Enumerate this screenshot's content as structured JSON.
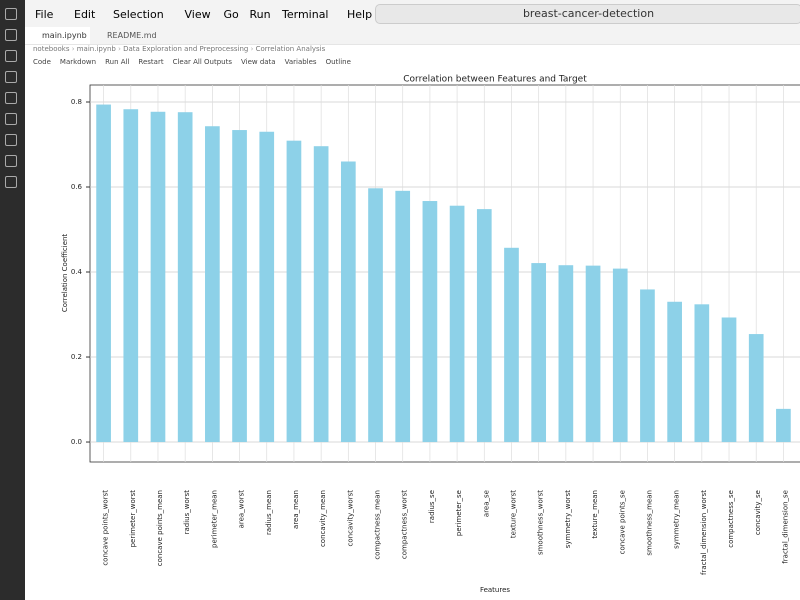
{
  "window": {
    "menu": [
      "File",
      "Edit",
      "Selection",
      "View",
      "Go",
      "Run",
      "Terminal",
      "Help"
    ],
    "search": "breast-cancer-detection",
    "tabs": [
      "main.ipynb",
      "README.md"
    ],
    "breadcrumbs": [
      "notebooks",
      "main.ipynb",
      "Data Exploration and Preprocessing",
      "Correlation Analysis"
    ],
    "toolbar": [
      "Code",
      "Markdown",
      "Run All",
      "Restart",
      "Clear All Outputs",
      "View data",
      "Variables",
      "Outline"
    ]
  },
  "chart_data": {
    "type": "bar",
    "title": "Correlation between Features and Target",
    "x_label": "Features",
    "y_label": "Correlation Coefficient",
    "categories": [
      "concave points_worst",
      "perimeter_worst",
      "concave points_mean",
      "radius_worst",
      "perimeter_mean",
      "area_worst",
      "radius_mean",
      "area_mean",
      "concavity_mean",
      "concavity_worst",
      "compactness_mean",
      "compactness_worst",
      "radius_se",
      "perimeter_se",
      "area_se",
      "texture_worst",
      "smoothness_worst",
      "symmetry_worst",
      "texture_mean",
      "concave points_se",
      "smoothness_mean",
      "symmetry_mean",
      "fractal_dimension_worst",
      "compactness_se",
      "concavity_se",
      "fractal_dimension_se"
    ],
    "values": [
      0.794,
      0.783,
      0.777,
      0.776,
      0.743,
      0.734,
      0.73,
      0.709,
      0.696,
      0.66,
      0.597,
      0.591,
      0.567,
      0.556,
      0.548,
      0.457,
      0.421,
      0.416,
      0.415,
      0.408,
      0.359,
      0.33,
      0.324,
      0.293,
      0.254,
      0.078
    ],
    "color": "#8dd1e8",
    "ylim": [
      -0.047,
      0.84
    ],
    "yticks": [
      {
        "value": 0,
        "label": "0.0"
      },
      {
        "value": 0.2,
        "label": "0.2"
      },
      {
        "value": 0.4,
        "label": "0.4"
      },
      {
        "value": 0.6,
        "label": "0.6"
      },
      {
        "value": 0.8,
        "label": "0.8"
      }
    ],
    "grid": true
  }
}
